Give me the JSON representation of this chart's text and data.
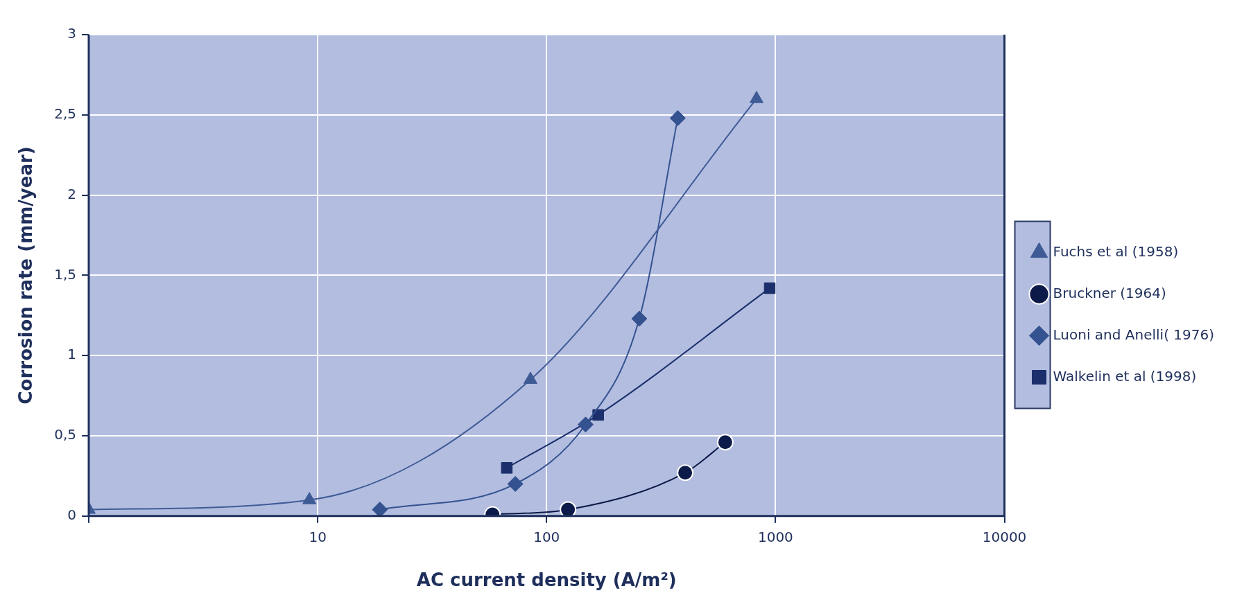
{
  "chart_data": {
    "type": "line",
    "xlabel": "AC current density (A/m²)",
    "ylabel": "Corrosion rate (mm/year)",
    "log": "x",
    "xlim": [
      1,
      10000
    ],
    "xticks": [
      {
        "value": 1,
        "label": null
      },
      10,
      100,
      1000,
      10000
    ],
    "ylim": [
      0,
      3
    ],
    "yticks": [
      0,
      {
        "value": 0.5,
        "label": "0,5"
      },
      1,
      {
        "value": 1.5,
        "label": "1,5"
      },
      2,
      {
        "value": 2.5,
        "label": "2,5"
      },
      3
    ],
    "grid": true,
    "legend": "right",
    "line_style": "solid",
    "series": [
      {
        "name": "Fuchs et al (1958)",
        "color": "#3f5b96",
        "marker": "triangle",
        "x": [
          1,
          9.2,
          85,
          826
        ],
        "values": [
          0.04,
          0.1,
          0.85,
          2.6
        ]
      },
      {
        "name": "Bruckner (1964)",
        "color": "#0b1a48",
        "marker": "circle",
        "x": [
          58,
          124,
          403,
          603
        ],
        "values": [
          0.01,
          0.04,
          0.27,
          0.46
        ]
      },
      {
        "name": "Luoni and Anelli( 1976)",
        "color": "#34528f",
        "marker": "diamond",
        "x": [
          18.7,
          73,
          148,
          254,
          374
        ],
        "values": [
          0.04,
          0.2,
          0.57,
          1.23,
          2.48
        ]
      },
      {
        "name": "Walkelin et al (1998)",
        "color": "#1a2f6b",
        "marker": "square",
        "x": [
          67,
          168,
          943
        ],
        "values": [
          0.3,
          0.63,
          1.42
        ]
      }
    ]
  }
}
